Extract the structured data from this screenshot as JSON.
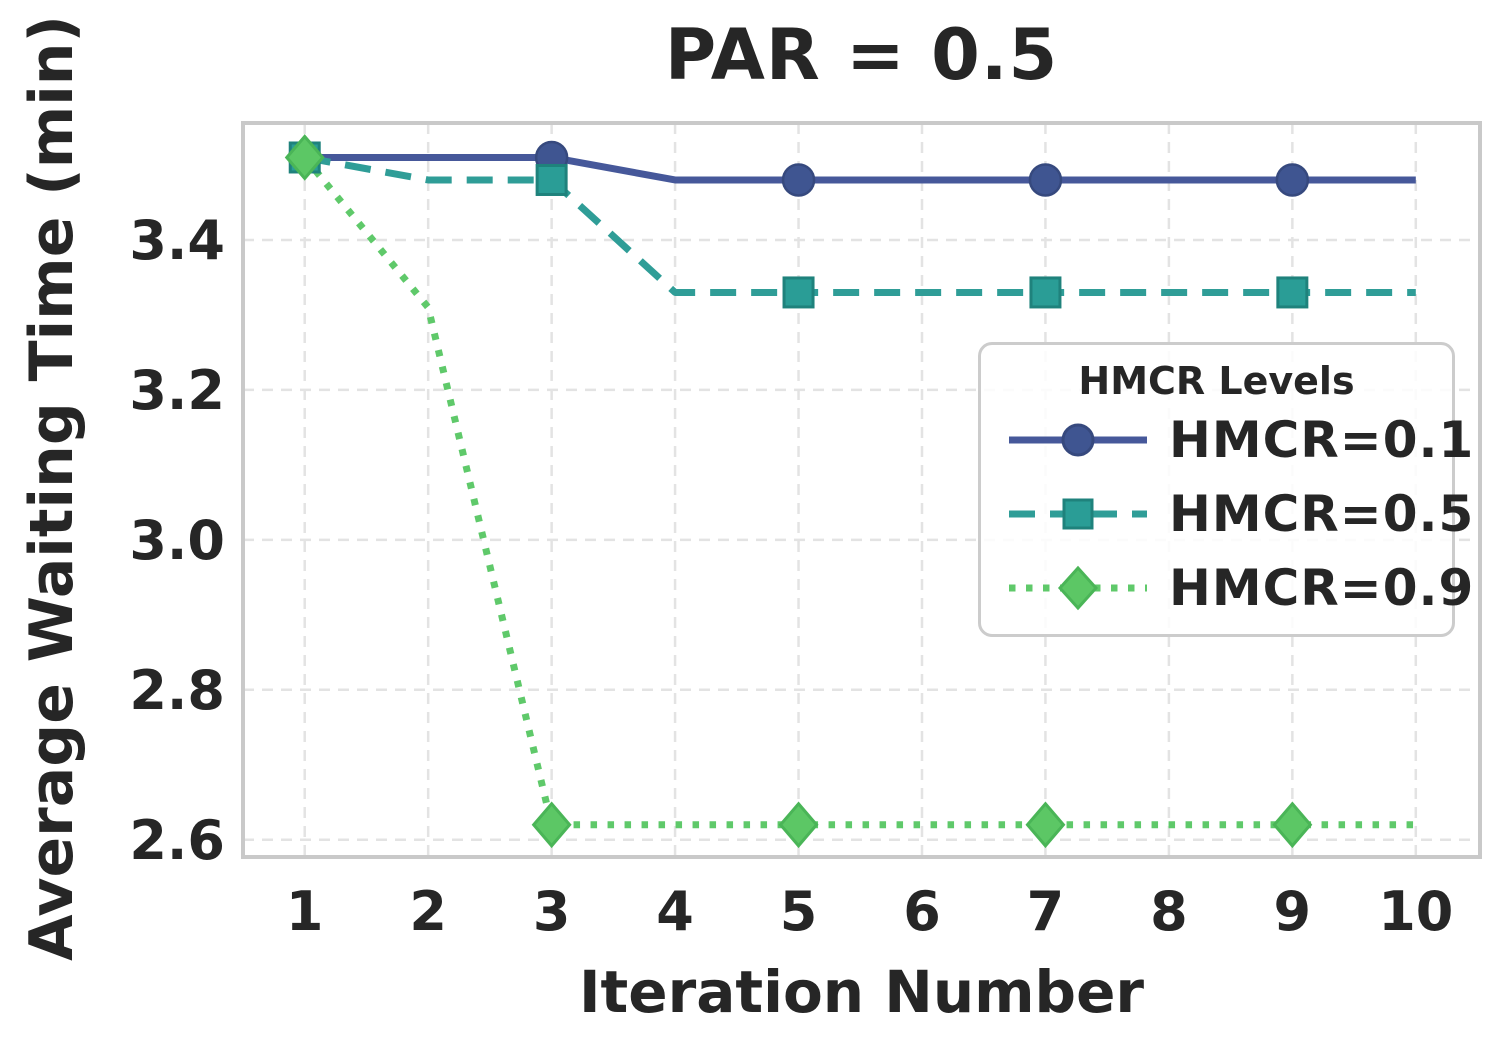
{
  "figure": {
    "title": "PAR = 0.5",
    "xlabel": "Iteration Number",
    "ylabel": "Average Waiting Time (min)"
  },
  "colors": {
    "grid": "#e3e3e3",
    "plot_border": "#c9c9c9",
    "text": "#262626",
    "hmcr_01": "#46589a",
    "hmcr_05": "#2f9d97",
    "hmcr_09": "#5fc96a"
  },
  "chart_data": {
    "type": "line",
    "title": "PAR = 0.5",
    "xlabel": "Iteration Number",
    "ylabel": "Average Waiting Time (min)",
    "x": [
      1,
      2,
      3,
      4,
      5,
      6,
      7,
      8,
      9,
      10
    ],
    "x_tick_labels": [
      "1",
      "2",
      "3",
      "4",
      "5",
      "6",
      "7",
      "8",
      "9",
      "10"
    ],
    "y_tick_values": [
      3.4,
      3.2,
      3.0,
      2.8,
      2.6
    ],
    "y_tick_labels": [
      "3.4",
      "3.2",
      "3.0",
      "2.8",
      "2.6"
    ],
    "xlim": [
      0.5,
      10.52
    ],
    "ylim": [
      2.577,
      3.556
    ],
    "grid": true,
    "grid_style": "dashed",
    "legend_title": "HMCR Levels",
    "legend_position": "center right inside",
    "marker_every": 2,
    "marker_x": [
      1,
      3,
      5,
      7,
      9
    ],
    "series": [
      {
        "name": "HMCR=0.1",
        "marker": "circle",
        "linestyle": "solid",
        "color": "#46589a",
        "marker_fill": "#3f5591",
        "marker_edge": "#36497e",
        "values": [
          3.51,
          3.51,
          3.51,
          3.48,
          3.48,
          3.48,
          3.48,
          3.48,
          3.48,
          3.48
        ]
      },
      {
        "name": "HMCR=0.5",
        "marker": "square",
        "linestyle": "dashed",
        "color": "#2f9d97",
        "marker_fill": "#2a9d96",
        "marker_edge": "#1f827c",
        "values": [
          3.51,
          3.48,
          3.48,
          3.33,
          3.33,
          3.33,
          3.33,
          3.33,
          3.33,
          3.33
        ]
      },
      {
        "name": "HMCR=0.9",
        "marker": "diamond",
        "linestyle": "dotted",
        "color": "#5fc96a",
        "marker_fill": "#5cc765",
        "marker_edge": "#4ab557",
        "values": [
          3.51,
          3.31,
          2.62,
          2.62,
          2.62,
          2.62,
          2.62,
          2.62,
          2.62,
          2.62
        ]
      }
    ]
  }
}
